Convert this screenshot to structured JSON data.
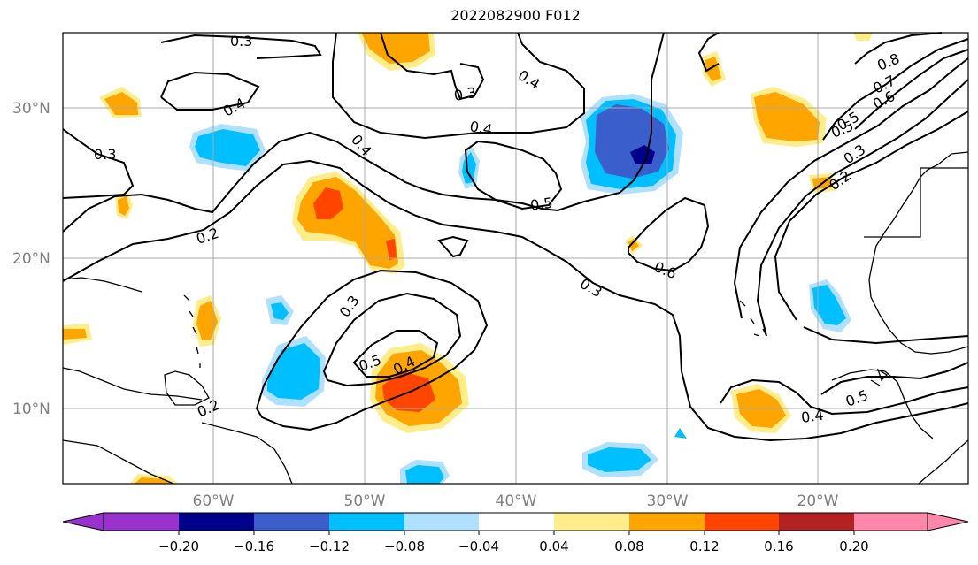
{
  "title": "2022082900 F012",
  "map": {
    "lat_labels": [
      "30°N",
      "20°N",
      "10°N"
    ],
    "lon_labels": [
      "60°W",
      "50°W",
      "40°W",
      "30°W",
      "20°W"
    ],
    "contour_labels": [
      "0.3",
      "0.4",
      "0.3",
      "0.4",
      "0.4",
      "0.4",
      "0.5",
      "0.3",
      "0.2",
      "0.3",
      "0.5",
      "0.4",
      "0.6",
      "0.3",
      "0.2",
      "0.5",
      "0.8",
      "0.7",
      "0.6",
      "0.5",
      "0.3",
      "0.2",
      "0.5",
      "0.4"
    ]
  },
  "colorbar": {
    "ticks": [
      "−0.20",
      "−0.16",
      "−0.12",
      "−0.08",
      "−0.04",
      "0.04",
      "0.08",
      "0.12",
      "0.16",
      "0.20"
    ],
    "colors": [
      "#9932cc",
      "#00008b",
      "#3a5fcd",
      "#00bfff",
      "#b0e0ff",
      "#ffffff",
      "#ffec8b",
      "#ffa500",
      "#ff4500",
      "#b22222",
      "#ff88aa"
    ]
  }
}
